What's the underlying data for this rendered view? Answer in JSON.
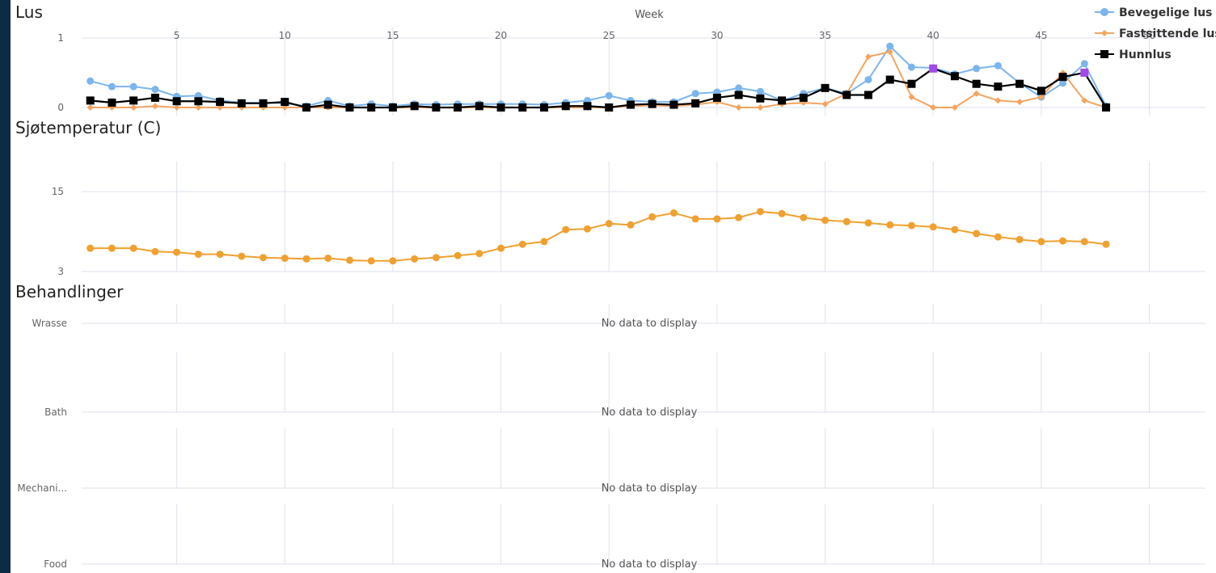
{
  "sections": {
    "lus_title": "Lus",
    "temp_title": "Sjøtemperatur (C)",
    "behandlinger_title": "Behandlinger"
  },
  "colors": {
    "page_bg": "#0d2a47",
    "grid": "#dde2ec",
    "bevegelige": "#7cb5ec",
    "fastsittende": "#f4a460",
    "hunnlus": "#000000",
    "highlight": "#a349e8",
    "temperature": "#f0a030"
  },
  "chart_data": [
    {
      "type": "line",
      "title": "Lus",
      "xlabel": "Week",
      "x_ticks": [
        5,
        10,
        15,
        20,
        25,
        30,
        35,
        40,
        45,
        50
      ],
      "x_tick_labels": [
        "5",
        "10",
        "15",
        "20",
        "25",
        "30",
        "35",
        "40",
        "45",
        "50"
      ],
      "xlim": [
        0.6,
        52.6
      ],
      "ylim": [
        0,
        1.15
      ],
      "y_ticks": [
        0,
        1
      ],
      "y_tick_labels": [
        "0",
        "1"
      ],
      "grid": true,
      "legend": "top-right",
      "x": [
        1,
        2,
        3,
        4,
        5,
        6,
        7,
        8,
        9,
        10,
        11,
        12,
        13,
        14,
        15,
        16,
        17,
        18,
        19,
        20,
        21,
        22,
        23,
        24,
        25,
        26,
        27,
        28,
        29,
        30,
        31,
        32,
        33,
        34,
        35,
        36,
        37,
        38,
        39,
        40,
        41,
        42,
        43,
        44,
        45,
        46,
        47,
        48
      ],
      "series": [
        {
          "name": "Bevegelige lus",
          "marker": "circle",
          "values": [
            0.38,
            0.3,
            0.3,
            0.26,
            0.16,
            0.17,
            0.1,
            0.07,
            0.07,
            0.06,
            0.02,
            0.1,
            0.02,
            0.05,
            0.02,
            0.05,
            0.04,
            0.05,
            0.05,
            0.05,
            0.05,
            0.04,
            0.07,
            0.1,
            0.17,
            0.1,
            0.08,
            0.08,
            0.2,
            0.22,
            0.28,
            0.23,
            0.1,
            0.2,
            0.28,
            0.2,
            0.4,
            0.88,
            0.58,
            0.57,
            0.48,
            0.56,
            0.6,
            0.35,
            0.15,
            0.35,
            0.63,
            0.02
          ]
        },
        {
          "name": "Fastsittende lus",
          "marker": "diamond",
          "values": [
            0.0,
            0.0,
            0.0,
            0.02,
            0.0,
            0.0,
            0.0,
            0.0,
            0.0,
            0.0,
            0.0,
            0.0,
            0.0,
            0.0,
            0.0,
            0.0,
            0.0,
            0.0,
            0.0,
            0.0,
            0.0,
            0.0,
            0.0,
            0.0,
            0.0,
            0.02,
            0.03,
            0.02,
            0.04,
            0.08,
            0.0,
            0.0,
            0.05,
            0.07,
            0.05,
            0.2,
            0.73,
            0.8,
            0.15,
            0.0,
            0.0,
            0.2,
            0.1,
            0.08,
            0.15,
            0.5,
            0.1,
            0.0
          ]
        },
        {
          "name": "Hunnlus",
          "marker": "square",
          "values": [
            0.1,
            0.07,
            0.1,
            0.14,
            0.09,
            0.09,
            0.08,
            0.06,
            0.06,
            0.08,
            0.0,
            0.04,
            0.0,
            0.0,
            0.0,
            0.02,
            0.0,
            0.0,
            0.02,
            0.0,
            0.0,
            0.0,
            0.02,
            0.02,
            0.0,
            0.04,
            0.05,
            0.04,
            0.06,
            0.14,
            0.18,
            0.13,
            0.1,
            0.14,
            0.28,
            0.18,
            0.18,
            0.4,
            0.34,
            0.56,
            0.45,
            0.34,
            0.3,
            0.34,
            0.24,
            0.44,
            0.5,
            0.0
          ]
        }
      ]
    },
    {
      "type": "line",
      "title": "Sjøtemperatur (C)",
      "xlim": [
        0.6,
        52.6
      ],
      "ylim": [
        3,
        19.5
      ],
      "y_ticks": [
        3,
        15
      ],
      "y_tick_labels": [
        "3",
        "15"
      ],
      "grid": true,
      "x": [
        1,
        2,
        3,
        4,
        5,
        6,
        7,
        8,
        9,
        10,
        11,
        12,
        13,
        14,
        15,
        16,
        17,
        18,
        19,
        20,
        21,
        22,
        23,
        24,
        25,
        26,
        27,
        28,
        29,
        30,
        31,
        32,
        33,
        34,
        35,
        36,
        37,
        38,
        39,
        40,
        41,
        42,
        43,
        44,
        45,
        46,
        47,
        48
      ],
      "series": [
        {
          "name": "",
          "values": [
            6.5,
            6.5,
            6.5,
            6.0,
            5.9,
            5.6,
            5.6,
            5.3,
            5.1,
            5.0,
            4.9,
            5.0,
            4.7,
            4.6,
            4.6,
            4.9,
            5.1,
            5.4,
            5.7,
            6.5,
            7.1,
            7.5,
            9.3,
            9.4,
            10.2,
            10.0,
            11.2,
            11.8,
            10.9,
            10.9,
            11.1,
            12.0,
            11.7,
            11.1,
            10.7,
            10.5,
            10.3,
            10.0,
            9.9,
            9.7,
            9.3,
            8.7,
            8.2,
            7.8,
            7.5,
            7.6,
            7.5,
            7.1
          ]
        }
      ]
    },
    {
      "type": "line",
      "title": "Behandlinger",
      "categories": [
        "Wrasse",
        "Bath",
        "Mechani...",
        "Food"
      ],
      "no_data_text": "No data to display",
      "grid": true
    }
  ]
}
